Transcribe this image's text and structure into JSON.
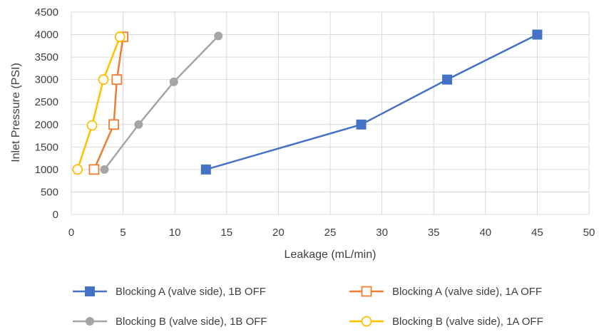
{
  "chart_data": {
    "type": "scatter",
    "title": "",
    "xlabel": "Leakage (mL/min)",
    "ylabel": "Inlet Pressure (PSI)",
    "xlim": [
      0,
      50
    ],
    "ylim": [
      0,
      4500
    ],
    "x_ticks": [
      0,
      5,
      10,
      15,
      20,
      25,
      30,
      35,
      40,
      45,
      50
    ],
    "y_ticks": [
      0,
      500,
      1000,
      1500,
      2000,
      2500,
      3000,
      3500,
      4000,
      4500
    ],
    "grid": "vertical and horizontal gridlines",
    "legend_position": "bottom",
    "series": [
      {
        "name": "Blocking A (valve side), 1B OFF",
        "color": "#4472C4",
        "marker": "filled-square",
        "x": [
          13,
          28,
          36.3,
          45
        ],
        "y": [
          1000,
          2000,
          3000,
          4000
        ]
      },
      {
        "name": "Blocking A (valve side), 1A OFF",
        "color": "#ED7D31",
        "marker": "hollow-square",
        "x": [
          2.2,
          4.1,
          4.4,
          5.0
        ],
        "y": [
          1000,
          2000,
          3000,
          3950
        ]
      },
      {
        "name": "Blocking B (valve side), 1B OFF",
        "color": "#A5A5A5",
        "marker": "filled-circle",
        "x": [
          3.2,
          6.5,
          9.9,
          14.2
        ],
        "y": [
          1000,
          2000,
          2950,
          3970
        ]
      },
      {
        "name": "Blocking B (valve side), 1A OFF",
        "color": "#FFC000",
        "marker": "hollow-circle",
        "x": [
          0.6,
          2.0,
          3.1,
          4.7
        ],
        "y": [
          1000,
          1980,
          3000,
          3950
        ]
      }
    ]
  }
}
